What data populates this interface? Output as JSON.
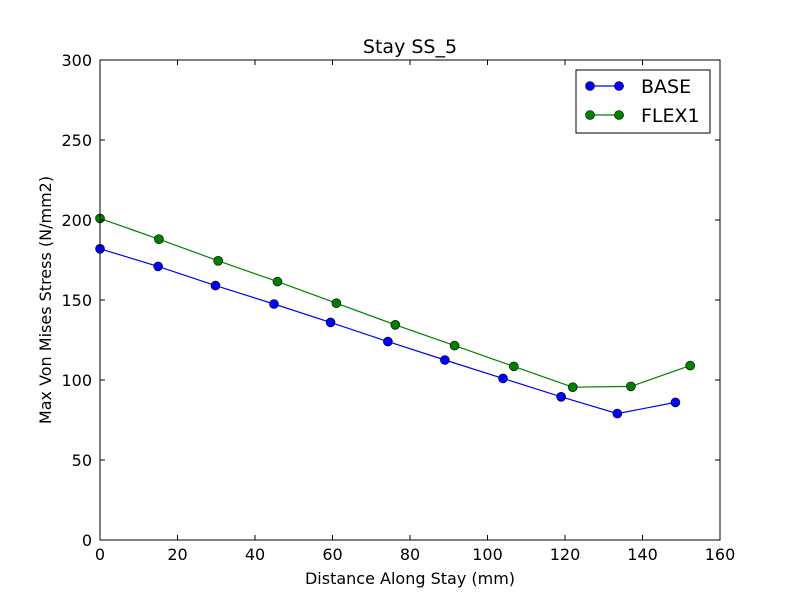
{
  "chart_data": {
    "type": "line",
    "title": "Stay SS_5",
    "xlabel": "Distance Along Stay (mm)",
    "ylabel": "Max Von Mises Stress (N/mm2)",
    "xlim": [
      0,
      160
    ],
    "ylim": [
      0,
      300
    ],
    "xticks": [
      0,
      20,
      40,
      60,
      80,
      100,
      120,
      140,
      160
    ],
    "yticks": [
      0,
      50,
      100,
      150,
      200,
      250,
      300
    ],
    "grid": false,
    "legend_position": "top-right",
    "series": [
      {
        "name": "BASE",
        "color": "#0000ff",
        "marker": "circle",
        "x": [
          0,
          15,
          29.8,
          44.9,
          59.5,
          74.3,
          89.0,
          104.0,
          119.0,
          133.5,
          148.5
        ],
        "y": [
          182.0,
          171.0,
          159.0,
          147.5,
          136.0,
          124.0,
          112.5,
          101.0,
          89.5,
          79.0,
          86.0
        ]
      },
      {
        "name": "FLEX1",
        "color": "#008000",
        "marker": "circle",
        "x": [
          0,
          15.2,
          30.5,
          45.8,
          61.0,
          76.2,
          91.5,
          106.8,
          122.0,
          137.0,
          152.3
        ],
        "y": [
          201.0,
          188.0,
          174.5,
          161.5,
          148.0,
          134.5,
          121.5,
          108.5,
          95.5,
          96.0,
          109.0
        ]
      }
    ]
  }
}
